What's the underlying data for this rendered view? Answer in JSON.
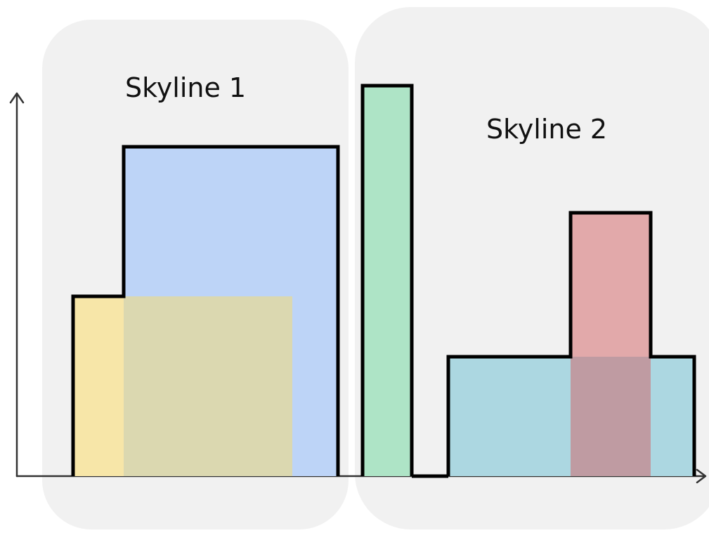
{
  "labels": {
    "skyline1": "Skyline 1",
    "skyline2": "Skyline 2"
  },
  "colors": {
    "group_background": "#f1f1f1",
    "building_yellow": "#f7e6a8",
    "building_blue": "#bdd4f7",
    "building_overlap_yellow_blue": "#dbd8b0",
    "building_green": "#aee4c6",
    "building_red": "#e2a9aa",
    "building_cyan": "#acd7e1",
    "building_overlap_red_cyan": "#bf9ba2",
    "outline": "#000000",
    "axis": "#333333"
  }
}
